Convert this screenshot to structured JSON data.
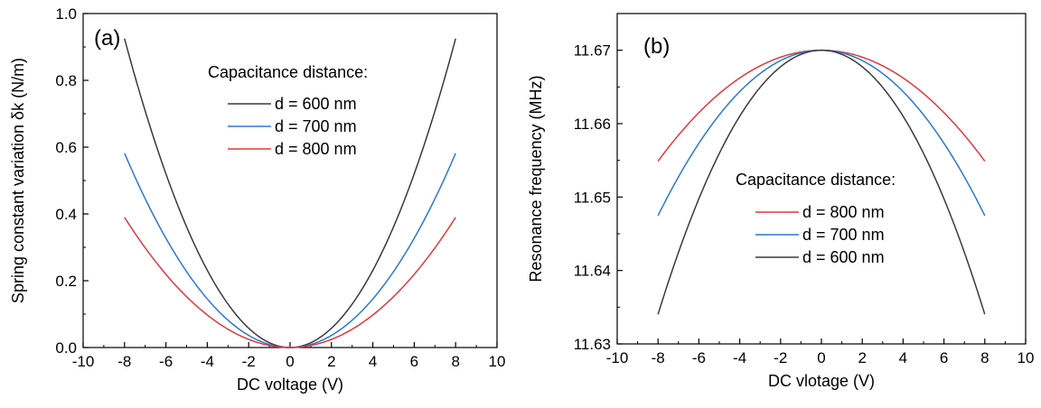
{
  "chart_data": [
    {
      "type": "line",
      "panel_label": "(a)",
      "xlabel": "DC voltage (V)",
      "ylabel": "Spring constant variation δk (N/m)",
      "xlim": [
        -10,
        10
      ],
      "ylim": [
        0.0,
        1.0
      ],
      "xticks": [
        -10,
        -8,
        -6,
        -4,
        -2,
        0,
        2,
        4,
        6,
        8,
        10
      ],
      "yticks": [
        0.0,
        0.2,
        0.4,
        0.6,
        0.8,
        1.0
      ],
      "ytick_labels": [
        "0.0",
        "0.2",
        "0.4",
        "0.6",
        "0.8",
        "1.0"
      ],
      "x_range": [
        -8,
        8
      ],
      "model": "y = a*x^2",
      "legend_title": "Capacitance distance:",
      "legend_position": "top-center",
      "grid": false,
      "series": [
        {
          "name": "d = 600 nm",
          "color": "#3a3a3a",
          "a": 0.01445
        },
        {
          "name": "d = 700 nm",
          "color": "#2a78d6",
          "a": 0.00909
        },
        {
          "name": "d = 800 nm",
          "color": "#e0383c",
          "a": 0.00609
        }
      ]
    },
    {
      "type": "line",
      "panel_label": "(b)",
      "xlabel": "DC vlotage (V)",
      "ylabel": "Resonance frequency (MHz)",
      "xlim": [
        -10,
        10
      ],
      "ylim": [
        11.63,
        11.675
      ],
      "xticks": [
        -10,
        -8,
        -6,
        -4,
        -2,
        0,
        2,
        4,
        6,
        8,
        10
      ],
      "yticks": [
        11.63,
        11.64,
        11.65,
        11.66,
        11.67
      ],
      "ytick_labels": [
        "11.63",
        "11.64",
        "11.65",
        "11.66",
        "11.67"
      ],
      "x_range": [
        -8,
        8
      ],
      "model": "y = y0 - a*x^2",
      "y0": 11.67,
      "legend_title": "Capacitance distance:",
      "legend_position": "center-bottom",
      "grid": false,
      "series": [
        {
          "name": "d = 800 nm",
          "color": "#e0383c",
          "a": 0.000236
        },
        {
          "name": "d = 700 nm",
          "color": "#2a78d6",
          "a": 0.000352
        },
        {
          "name": "d = 600 nm",
          "color": "#3a3a3a",
          "a": 0.000562
        }
      ]
    }
  ]
}
